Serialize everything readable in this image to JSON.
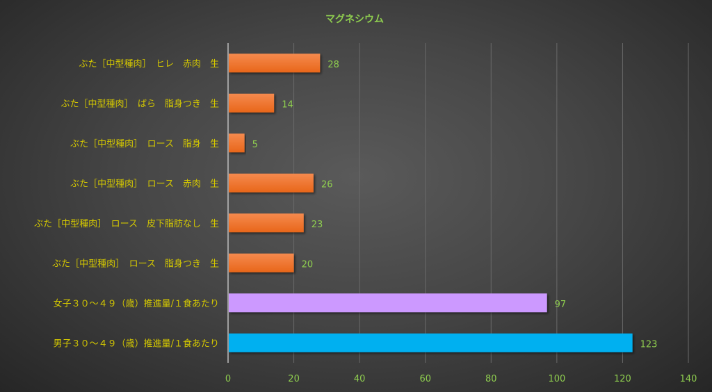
{
  "chart_data": {
    "type": "bar",
    "orientation": "horizontal",
    "title": "マグネシウム",
    "xlabel": "",
    "ylabel": "",
    "xlim": [
      0,
      140
    ],
    "xticks": [
      0,
      20,
      40,
      60,
      80,
      100,
      120,
      140
    ],
    "grid": true,
    "categories": [
      "ぶた［中型種肉］　ヒレ　赤肉　生",
      "ぶた［中型種肉］　ばら　脂身つき　生",
      "ぶた［中型種肉］　ロース　脂身　生",
      "ぶた［中型種肉］　ロース　赤肉　生",
      "ぶた［中型種肉］　ロース　皮下脂肪なし　生",
      "ぶた［中型種肉］　ロース　脂身つき　生",
      "女子３０～４９（歳）推進量/１食あたり",
      "男子３０～４９（歳）推進量/１食あたり"
    ],
    "values": [
      28,
      14,
      5,
      26,
      23,
      20,
      97,
      123
    ],
    "colors": [
      "#ed7125",
      "#ed7125",
      "#ed7125",
      "#ed7125",
      "#ed7125",
      "#ed7125",
      "#cc99ff",
      "#00b0f0"
    ]
  }
}
